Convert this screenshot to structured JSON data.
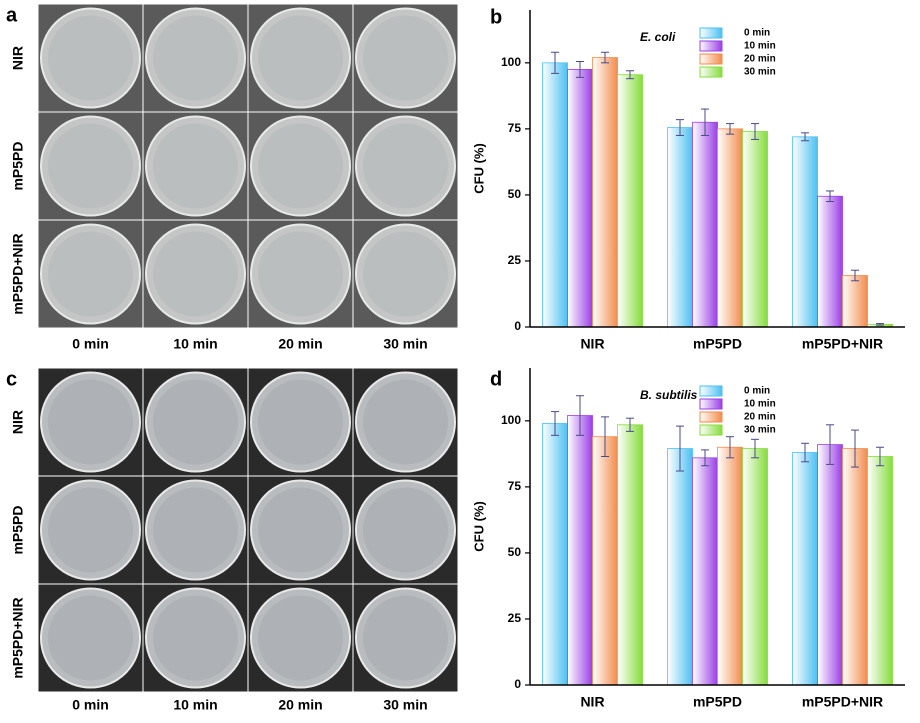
{
  "photo_panels": [
    {
      "panel_label": "a",
      "row_labels": [
        "NIR",
        "mP5PD",
        "mP5PD+NIR"
      ],
      "col_labels": [
        "0 min",
        "10 min",
        "20 min",
        "30 min"
      ]
    },
    {
      "panel_label": "c",
      "row_labels": [
        "NIR",
        "mP5PD",
        "mP5PD+NIR"
      ],
      "col_labels": [
        "0 min",
        "10 min",
        "20 min",
        "30 min"
      ]
    }
  ],
  "chart_data": [
    {
      "type": "bar",
      "panel_label": "b",
      "title": "E. coli",
      "y_label": "CFU (%)",
      "categories": [
        "NIR",
        "mP5PD",
        "mP5PD+NIR"
      ],
      "ylim": [
        0,
        120
      ],
      "yticks": [
        0,
        25,
        50,
        75,
        100
      ],
      "series": [
        {
          "name": "0 min",
          "color": "#4cc0f2",
          "values": [
            100,
            75.5,
            72
          ],
          "errors": [
            4,
            3,
            1.5
          ]
        },
        {
          "name": "10 min",
          "color": "#9a3ee6",
          "values": [
            97.5,
            77.5,
            49.5
          ],
          "errors": [
            3,
            5,
            2
          ]
        },
        {
          "name": "20 min",
          "color": "#f28c4c",
          "values": [
            102,
            75,
            19.5
          ],
          "errors": [
            2,
            2,
            2
          ]
        },
        {
          "name": "30 min",
          "color": "#86dc3c",
          "values": [
            95.5,
            74,
            1
          ],
          "errors": [
            1.5,
            3,
            0.3
          ]
        }
      ]
    },
    {
      "type": "bar",
      "panel_label": "d",
      "title": "B. subtilis",
      "y_label": "CFU (%)",
      "categories": [
        "NIR",
        "mP5PD",
        "mP5PD+NIR"
      ],
      "ylim": [
        0,
        120
      ],
      "yticks": [
        0,
        25,
        50,
        75,
        100
      ],
      "series": [
        {
          "name": "0 min",
          "color": "#4cc0f2",
          "values": [
            99,
            89.5,
            88
          ],
          "errors": [
            4.5,
            8.5,
            3.5
          ]
        },
        {
          "name": "10 min",
          "color": "#9a3ee6",
          "values": [
            102,
            86,
            91
          ],
          "errors": [
            7.5,
            3,
            7.5
          ]
        },
        {
          "name": "20 min",
          "color": "#f28c4c",
          "values": [
            94,
            90,
            89.5
          ],
          "errors": [
            7.5,
            4,
            7
          ]
        },
        {
          "name": "30 min",
          "color": "#86dc3c",
          "values": [
            98.5,
            89.5,
            86.5
          ],
          "errors": [
            2.5,
            3.5,
            3.5
          ]
        }
      ]
    }
  ]
}
